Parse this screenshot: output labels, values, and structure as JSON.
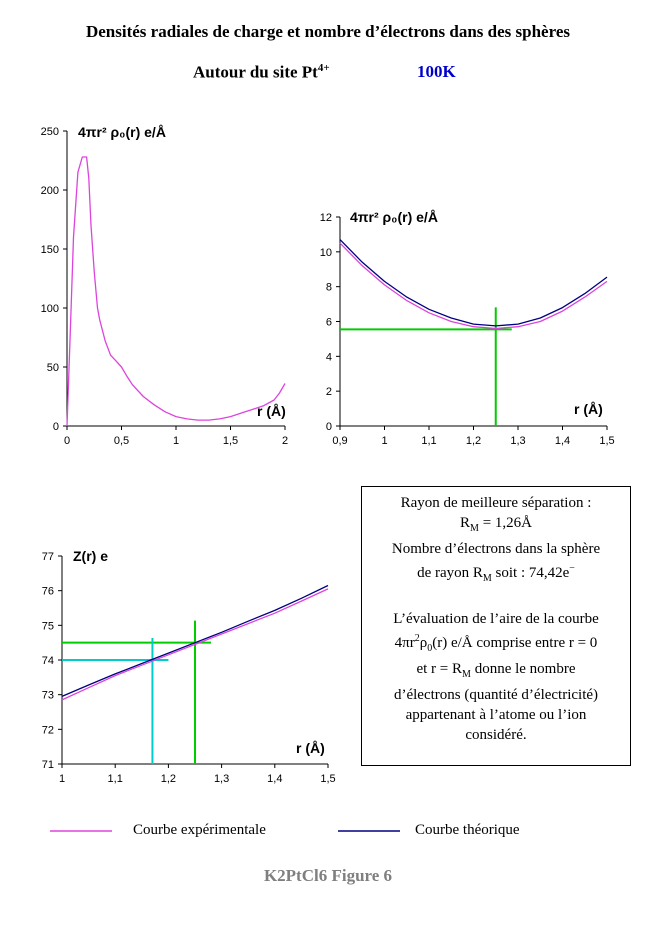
{
  "header": {
    "title": "Densités radiales de charge et nombre d’électrons dans des sphères",
    "subtitle": "Autour du site Pt",
    "subtitle_sup": "4+",
    "temperature": "100K"
  },
  "colors": {
    "experimental": "#dd44dd",
    "theoretical": "#000080",
    "marker_green": "#00cc00",
    "marker_cyan": "#00cccc",
    "temperature": "#0000cc"
  },
  "textbox": {
    "line1": "Rayon de meilleure séparation :",
    "line2_prefix": "R",
    "line2_sub": "M",
    "line2_suffix": " = 1,26Å",
    "line3": "Nombre d’électrons dans la sphère",
    "line4_prefix": "de rayon R",
    "line4_sub": "M",
    "line4_suffix": " soit : 74,42e",
    "line4_sup": "−",
    "line5": "L’évaluation de l’aire de la courbe",
    "line6_a": "4πr",
    "line6_sup": "2",
    "line6_b": "ρ",
    "line6_sub": "0",
    "line6_c": "(r) e/Å comprise entre r = 0",
    "line7_prefix": "et r = R",
    "line7_sub": "M",
    "line7_suffix": " donne le nombre",
    "line8": "d’électrons (quantité d’électricité)",
    "line9": "appartenant à l’atome ou l’ion",
    "line10": "considéré."
  },
  "legend": {
    "experimental": "Courbe expérimentale",
    "theoretical": "Courbe théorique"
  },
  "caption": "K2PtCl6 Figure 6",
  "chart_data": [
    {
      "type": "line",
      "ylabel": "4πr² ρ₀(r) e/Å",
      "xlabel": "r (Å)",
      "xlim": [
        0,
        2
      ],
      "ylim": [
        0,
        250
      ],
      "xticks": [
        "0",
        "0,5",
        "1",
        "1,5",
        "2"
      ],
      "yticks": [
        "0",
        "50",
        "100",
        "150",
        "200",
        "250"
      ],
      "series": [
        {
          "key": "experimental",
          "x": [
            0,
            0.03,
            0.06,
            0.1,
            0.14,
            0.18,
            0.2,
            0.22,
            0.25,
            0.28,
            0.3,
            0.35,
            0.4,
            0.45,
            0.5,
            0.55,
            0.6,
            0.7,
            0.8,
            0.9,
            1.0,
            1.1,
            1.2,
            1.3,
            1.4,
            1.5,
            1.6,
            1.7,
            1.8,
            1.9,
            1.95,
            2.0
          ],
          "y": [
            0,
            80,
            160,
            215,
            228,
            228,
            210,
            170,
            130,
            100,
            90,
            72,
            60,
            55,
            50,
            42,
            35,
            25,
            18,
            12,
            8,
            6,
            5,
            5,
            6,
            8,
            11,
            14,
            17,
            22,
            28,
            36
          ]
        }
      ]
    },
    {
      "type": "line",
      "ylabel": "4πr² ρ₀(r) e/Å",
      "xlabel": "r (Å)",
      "xlim": [
        0.9,
        1.5
      ],
      "ylim": [
        0,
        12
      ],
      "xticks": [
        "0,9",
        "1",
        "1,1",
        "1,2",
        "1,3",
        "1,4",
        "1,5"
      ],
      "yticks": [
        "0",
        "2",
        "4",
        "6",
        "8",
        "10",
        "12"
      ],
      "series": [
        {
          "key": "experimental",
          "x": [
            0.9,
            0.95,
            1.0,
            1.05,
            1.1,
            1.15,
            1.2,
            1.25,
            1.3,
            1.35,
            1.4,
            1.45,
            1.5
          ],
          "y": [
            10.5,
            9.2,
            8.1,
            7.2,
            6.5,
            6.0,
            5.7,
            5.6,
            5.7,
            6.0,
            6.6,
            7.4,
            8.3
          ]
        },
        {
          "key": "theoretical",
          "x": [
            0.9,
            0.95,
            1.0,
            1.05,
            1.1,
            1.15,
            1.2,
            1.25,
            1.3,
            1.35,
            1.4,
            1.45,
            1.5
          ],
          "y": [
            10.7,
            9.4,
            8.3,
            7.4,
            6.7,
            6.2,
            5.85,
            5.75,
            5.85,
            6.2,
            6.8,
            7.6,
            8.55
          ]
        }
      ],
      "markers": [
        {
          "color": "marker_green",
          "x": 1.25,
          "y": 5.55
        }
      ]
    },
    {
      "type": "line",
      "ylabel": "Z(r) e",
      "xlabel": "r (Å)",
      "xlim": [
        1,
        1.5
      ],
      "ylim": [
        71,
        77
      ],
      "xticks": [
        "1",
        "1,1",
        "1,2",
        "1,3",
        "1,4",
        "1,5"
      ],
      "yticks": [
        "71",
        "72",
        "73",
        "74",
        "75",
        "76",
        "77"
      ],
      "series": [
        {
          "key": "experimental",
          "x": [
            1.0,
            1.05,
            1.1,
            1.15,
            1.2,
            1.25,
            1.3,
            1.35,
            1.4,
            1.45,
            1.5
          ],
          "y": [
            72.85,
            73.2,
            73.55,
            73.85,
            74.15,
            74.45,
            74.75,
            75.05,
            75.35,
            75.7,
            76.05
          ]
        },
        {
          "key": "theoretical",
          "x": [
            1.0,
            1.05,
            1.1,
            1.15,
            1.2,
            1.25,
            1.3,
            1.35,
            1.4,
            1.45,
            1.5
          ],
          "y": [
            72.95,
            73.28,
            73.6,
            73.9,
            74.2,
            74.5,
            74.8,
            75.12,
            75.43,
            75.78,
            76.15
          ]
        }
      ],
      "markers": [
        {
          "color": "marker_green",
          "x": 1.25,
          "y": 74.5
        },
        {
          "color": "marker_cyan",
          "x": 1.17,
          "y": 74.0
        }
      ]
    }
  ]
}
